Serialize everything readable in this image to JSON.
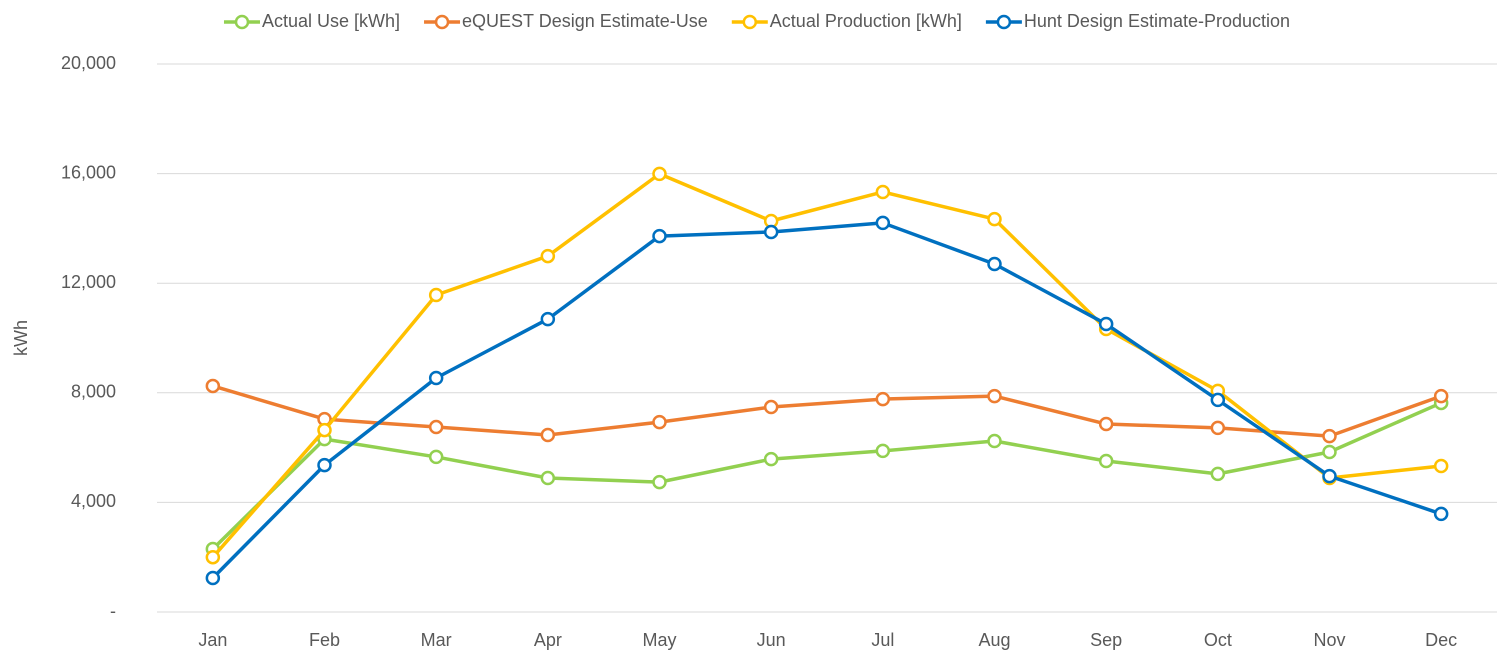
{
  "chart_data": {
    "type": "line",
    "y_label": "kWh",
    "categories": [
      "Jan",
      "Feb",
      "Mar",
      "Apr",
      "May",
      "Jun",
      "Jul",
      "Aug",
      "Sep",
      "Oct",
      "Nov",
      "Dec"
    ],
    "series": [
      {
        "name": "Actual Use [kWh]",
        "color": "#92d050",
        "values": [
          2300,
          6310,
          5660,
          4890,
          4740,
          5580,
          5880,
          6240,
          5510,
          5040,
          5840,
          7630
        ]
      },
      {
        "name": "eQUEST Design Estimate-Use",
        "color": "#ed7d31",
        "values": [
          8250,
          7040,
          6750,
          6460,
          6930,
          7480,
          7770,
          7880,
          6860,
          6720,
          6420,
          7880
        ]
      },
      {
        "name": "Actual Production [kWh]",
        "color": "#ffc000",
        "values": [
          2000,
          6640,
          11570,
          12990,
          15990,
          14270,
          15330,
          14340,
          10330,
          8070,
          4890,
          5330
        ]
      },
      {
        "name": "Hunt Design Estimate-Production",
        "color": "#0070c0",
        "values": [
          1240,
          5360,
          8540,
          10690,
          13720,
          13870,
          14200,
          12700,
          10510,
          7740,
          4960,
          3580
        ]
      }
    ],
    "ylim": [
      0,
      20000
    ],
    "yticks": [
      {
        "value": 0,
        "label": "-"
      },
      {
        "value": 4000,
        "label": "4,000"
      },
      {
        "value": 8000,
        "label": "8,000"
      },
      {
        "value": 12000,
        "label": "12,000"
      },
      {
        "value": 16000,
        "label": "16,000"
      },
      {
        "value": 20000,
        "label": "20,000"
      }
    ],
    "grid": true,
    "legend": "top"
  }
}
